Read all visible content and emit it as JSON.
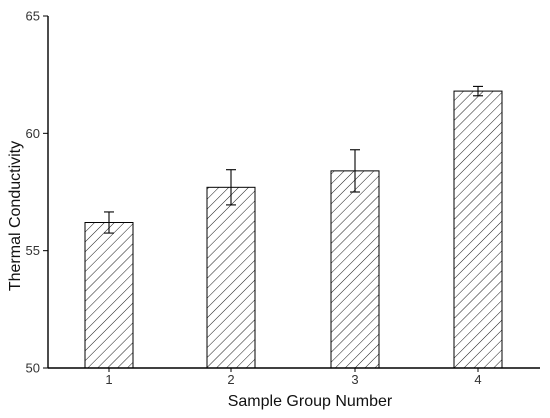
{
  "chart_data": {
    "type": "bar",
    "title": "",
    "xlabel": "Sample Group Number",
    "ylabel": "Thermal Conductivity",
    "categories": [
      "1",
      "2",
      "3",
      "4"
    ],
    "values": [
      56.2,
      57.7,
      58.4,
      61.8
    ],
    "error": [
      0.45,
      0.75,
      0.9,
      0.2
    ],
    "ylim": [
      50,
      65
    ],
    "yticks": [
      "50",
      "55",
      "60",
      "65"
    ],
    "grid": false,
    "legend": "none",
    "bar_pattern": "diagonal-hatch",
    "bar_color": "#ffffff",
    "edge_color": "#000000"
  }
}
